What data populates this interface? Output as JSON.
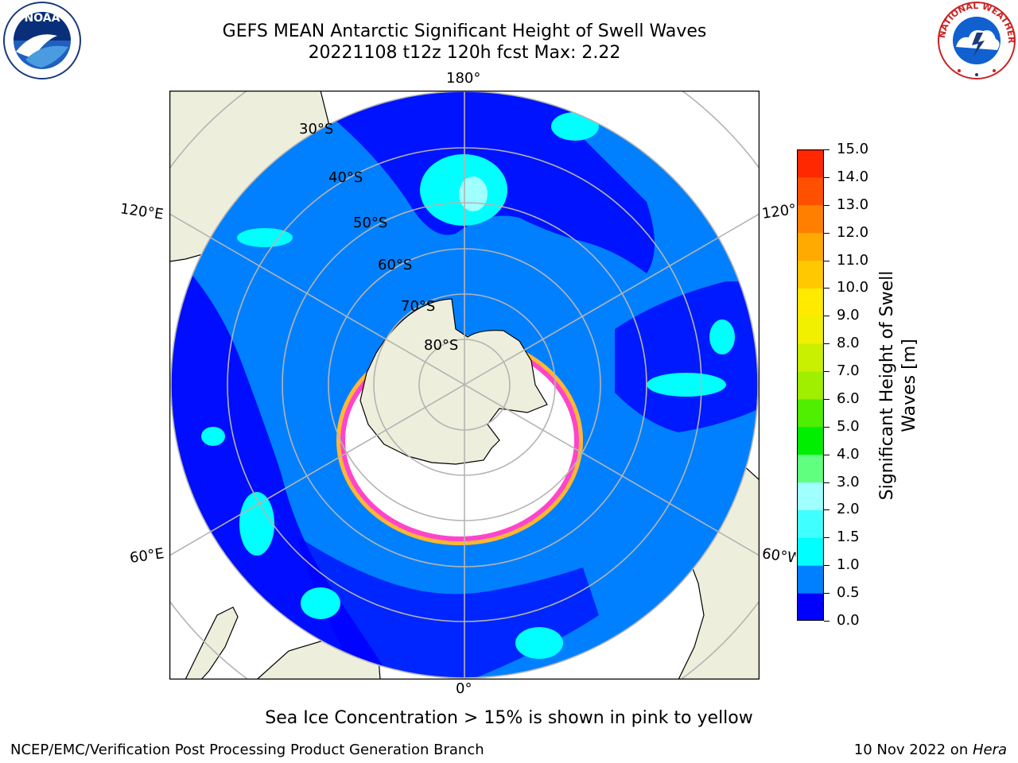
{
  "header": {
    "title_line1": "GEFS MEAN Antarctic Significant Height of Swell Waves",
    "title_line2": "20221108 t12z 120h fcst   Max: 2.22"
  },
  "logos": {
    "left": {
      "icon": "noaa-logo",
      "text": "NOAA"
    },
    "right": {
      "icon": "nws-logo",
      "text": "NATIONAL WEATHER SERVICE"
    }
  },
  "map": {
    "projection": "south-polar-stereographic",
    "longitude_labels": {
      "top": "180°",
      "bottom": "0°",
      "upper_left": "120°E",
      "upper_right": "120°W",
      "lower_left": "60°E",
      "lower_right": "60°W"
    },
    "latitude_labels": [
      "30°S",
      "40°S",
      "50°S",
      "60°S",
      "70°S",
      "80°S"
    ],
    "colors": {
      "land": "#eeeedc",
      "ocean_low": "#0000ff",
      "ocean_mid": "#0080ff",
      "ocean_high": "#00ffff",
      "ocean_higher": "#40ffff",
      "ice_edge": "#ff44cc",
      "ice_yellow": "#ffb833",
      "gridline": "#b4b4b4"
    }
  },
  "colorbar": {
    "label": "Significant Height of Swell Waves [m]",
    "label_line1": "Significant Height of Swell",
    "label_line2": "Waves [m]",
    "ticks": [
      "0.0",
      "0.5",
      "1.0",
      "1.5",
      "2.0",
      "3.0",
      "4.0",
      "5.0",
      "6.0",
      "7.0",
      "8.0",
      "9.0",
      "10.0",
      "11.0",
      "12.0",
      "13.0",
      "14.0",
      "15.0"
    ],
    "colors": [
      "#0000ff",
      "#0080ff",
      "#00ffff",
      "#40ffff",
      "#a0ffff",
      "#60ff80",
      "#00ee00",
      "#50ee00",
      "#a0ee00",
      "#c8f000",
      "#f0f000",
      "#ffea00",
      "#ffc800",
      "#ffaa00",
      "#ff8000",
      "#ff5000",
      "#ff2800",
      "#ff0000"
    ]
  },
  "notes": {
    "sea_ice": "Sea Ice Concentration > 15% is shown in pink to yellow"
  },
  "footer": {
    "left": "NCEP/EMC/Verification Post Processing Product Generation Branch",
    "right_prefix": "10 Nov 2022 on ",
    "right_machine": "Hera"
  }
}
